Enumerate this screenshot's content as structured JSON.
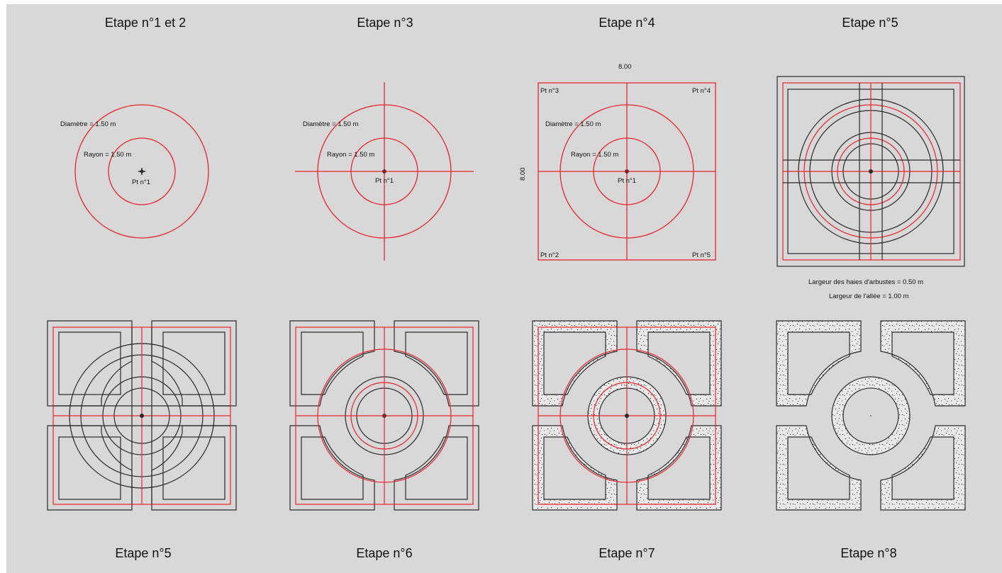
{
  "colors": {
    "background": "#d8d8d8",
    "line": "#2a2a2a",
    "construction": "#e8242b"
  },
  "titles": {
    "s1": "Etape n°1 et 2",
    "s3": "Etape n°3",
    "s4": "Etape n°4",
    "s5a": "Etape n°5",
    "s5b": "Etape n°5",
    "s6": "Etape n°6",
    "s7": "Etape n°7",
    "s8": "Etape n°8"
  },
  "labels": {
    "diametre": "Diamètre = 1.50 m",
    "rayon": "Rayon = 1.50 m",
    "pt1": "Pt n°1",
    "pt2": "Pt n°2",
    "pt3": "Pt n°3",
    "pt4": "Pt n°4",
    "pt5": "Pt n°5",
    "dim_width": "8.00",
    "dim_height": "8.00",
    "haies": "Largeur des haies d'arbustes = 0.50 m",
    "allee": "Largeur de l'allée = 1.00 m"
  }
}
